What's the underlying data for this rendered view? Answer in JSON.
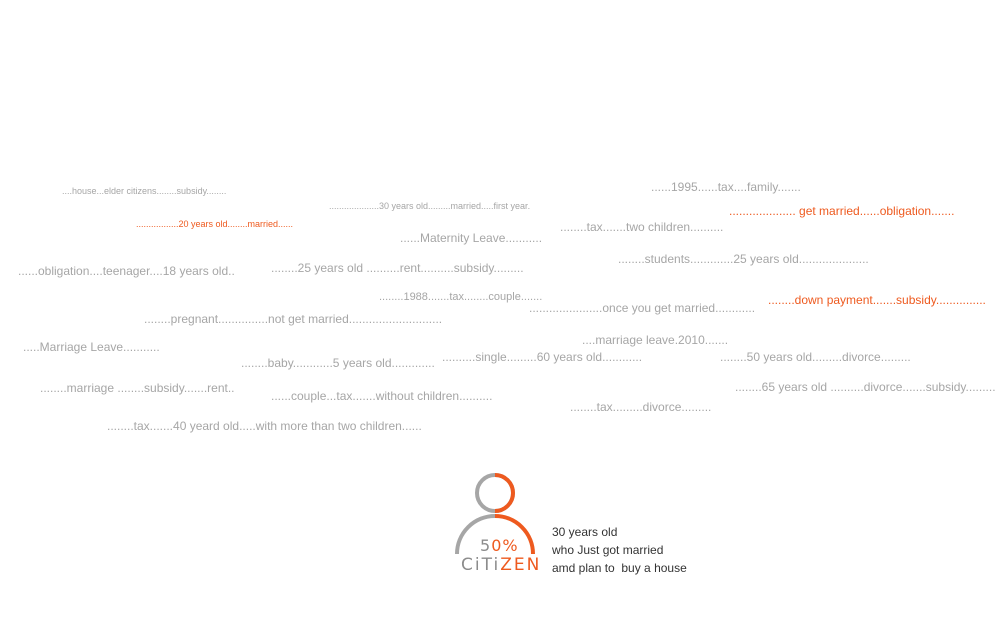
{
  "phrases": [
    "....house...elder citizens........subsidy........",
    "....................30 years old.........married.....first year.",
    "......1995......tax....family.......",
    ".................... get married......obligation.......",
    ".................20 years old........married......",
    "......Maternity Leave...........",
    "........tax.......two children..........",
    "......obligation....teenager....18 years old..",
    "........25 years old ..........rent..........subsidy.........",
    "........students.............25 years old.....................",
    "........1988.......tax........couple.......",
    "........down payment.......subsidy...............",
    "......................once you get married............",
    "........pregnant...............not get married............................",
    ".....Marriage Leave...........",
    "....marriage leave.2010.......",
    "........baby............5 years old.............",
    "..........single.........60 years old............",
    "........50 years old.........divorce.........",
    "........marriage ........subsidy.......rent..",
    "......couple...tax.......without children..........",
    "........65 years old ..........divorce.......subsidy.........",
    "........tax.........divorce.........",
    "........tax.......40 yeard old.....with more than two children......"
  ],
  "logo": {
    "percent_digits": "5",
    "percent_rest": "0%",
    "brand_gray": "CiTi",
    "brand_orange": "ZEN",
    "progress_fraction": 0.5
  },
  "caption": {
    "line1": "30 years old",
    "line2": "who Just got married",
    "line3": "amd plan to  buy a house"
  },
  "colors": {
    "accent": "#ee5a1f",
    "muted": "#a6a6a6",
    "text": "#333333"
  }
}
